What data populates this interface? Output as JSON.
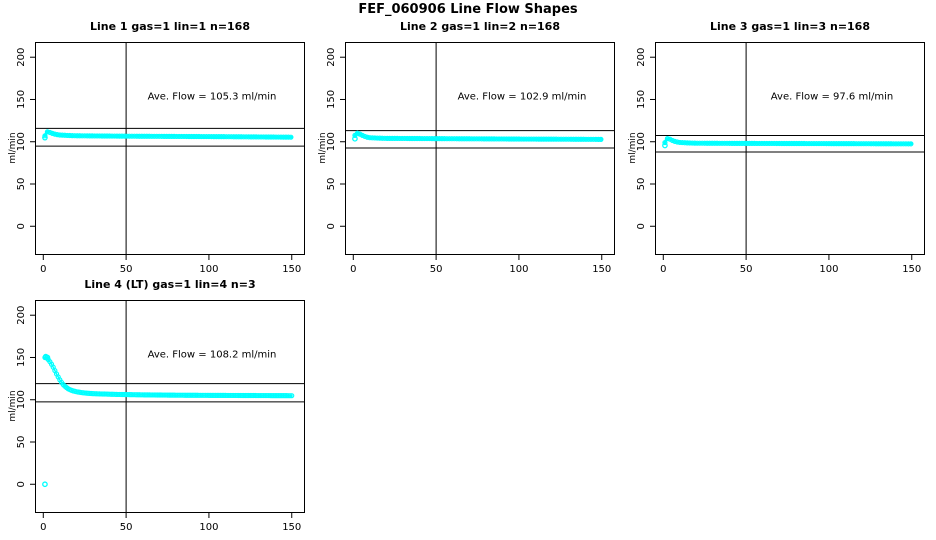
{
  "figure": {
    "title": "FEF_060906  Line Flow Shapes",
    "y_axis_label": "ml/min",
    "background": "#ffffff",
    "point_color": "#00ffff",
    "axis_color": "#000000"
  },
  "axes": {
    "x_ticks": [
      0,
      50,
      100,
      150
    ],
    "y_ticks": [
      0,
      50,
      100,
      150,
      200
    ],
    "x_range": [
      -5,
      158
    ],
    "y_range": [
      -34,
      218
    ],
    "grid": false
  },
  "chart_data": [
    {
      "type": "scatter",
      "title": "Line 1 gas=1 lin=1 n=168",
      "annotation": "Ave. Flow =  105.3  ml/min",
      "ave_flow_ml_min": 105.3,
      "gas": 1,
      "lin": 1,
      "n": 168,
      "ref_vertical_x": 50,
      "ref_upper_y": 115.8,
      "ref_lower_y": 94.8,
      "band_halfwidth": 1.6,
      "profile_points": [
        [
          1,
          107
        ],
        [
          2,
          111.5
        ],
        [
          3,
          112
        ],
        [
          4,
          111
        ],
        [
          6,
          109.5
        ],
        [
          8,
          108.5
        ],
        [
          10,
          108
        ],
        [
          15,
          107.4
        ],
        [
          20,
          107.1
        ],
        [
          30,
          106.9
        ],
        [
          50,
          106.6
        ],
        [
          80,
          106.3
        ],
        [
          110,
          106
        ],
        [
          130,
          105.7
        ],
        [
          150,
          105.4
        ]
      ],
      "extra_points": [
        [
          1,
          104.8
        ]
      ]
    },
    {
      "type": "scatter",
      "title": "Line 2 gas=1 lin=2 n=168",
      "annotation": "Ave. Flow =  102.9  ml/min",
      "ave_flow_ml_min": 102.9,
      "gas": 1,
      "lin": 2,
      "n": 168,
      "ref_vertical_x": 50,
      "ref_upper_y": 113.2,
      "ref_lower_y": 92.6,
      "band_halfwidth": 1.6,
      "profile_points": [
        [
          1,
          107.5
        ],
        [
          2,
          110
        ],
        [
          3,
          110
        ],
        [
          4,
          109
        ],
        [
          6,
          107
        ],
        [
          8,
          105.5
        ],
        [
          10,
          104.8
        ],
        [
          15,
          104.3
        ],
        [
          20,
          104
        ],
        [
          40,
          103.8
        ],
        [
          70,
          103.5
        ],
        [
          100,
          103.2
        ],
        [
          130,
          103
        ],
        [
          150,
          102.8
        ]
      ],
      "extra_points": [
        [
          1,
          103.5
        ]
      ]
    },
    {
      "type": "scatter",
      "title": "Line 3 gas=1 lin=3 n=168",
      "annotation": "Ave. Flow =  97.6  ml/min",
      "ave_flow_ml_min": 97.6,
      "gas": 1,
      "lin": 3,
      "n": 168,
      "ref_vertical_x": 50,
      "ref_upper_y": 107.4,
      "ref_lower_y": 87.8,
      "band_halfwidth": 1.6,
      "profile_points": [
        [
          1,
          99
        ],
        [
          2,
          103.5
        ],
        [
          3,
          104
        ],
        [
          4,
          103
        ],
        [
          6,
          101
        ],
        [
          8,
          99.8
        ],
        [
          10,
          99.2
        ],
        [
          15,
          98.6
        ],
        [
          20,
          98.3
        ],
        [
          40,
          98.1
        ],
        [
          80,
          97.9
        ],
        [
          120,
          97.7
        ],
        [
          150,
          97.5
        ]
      ],
      "extra_points": [
        [
          1,
          95.5
        ]
      ]
    },
    {
      "type": "scatter",
      "title": "Line 4 (LT) gas=1 lin=4 n=3",
      "annotation": "Ave. Flow =  108.2  ml/min",
      "ave_flow_ml_min": 108.2,
      "gas": 1,
      "lin": 4,
      "n": 3,
      "ref_vertical_x": 50,
      "ref_upper_y": 119.0,
      "ref_lower_y": 97.4,
      "band_halfwidth": 0.9,
      "profile_points": [
        [
          1,
          150
        ],
        [
          2,
          149.5
        ],
        [
          3,
          147.5
        ],
        [
          4,
          145
        ],
        [
          5,
          142
        ],
        [
          6,
          138.5
        ],
        [
          7,
          134.5
        ],
        [
          8,
          130.5
        ],
        [
          9,
          127
        ],
        [
          10,
          123.5
        ],
        [
          11,
          120.5
        ],
        [
          12,
          118
        ],
        [
          13,
          116
        ],
        [
          14,
          114.5
        ],
        [
          15,
          113
        ],
        [
          16,
          112
        ],
        [
          18,
          110.5
        ],
        [
          20,
          109.5
        ],
        [
          23,
          108.5
        ],
        [
          26,
          107.8
        ],
        [
          30,
          107.2
        ],
        [
          36,
          106.8
        ],
        [
          45,
          106.3
        ],
        [
          60,
          105.8
        ],
        [
          80,
          105.4
        ],
        [
          100,
          105.2
        ],
        [
          125,
          105
        ],
        [
          150,
          104.8
        ]
      ],
      "extra_points": [
        [
          1,
          0
        ],
        [
          1.5,
          151
        ],
        [
          2.5,
          150
        ]
      ]
    }
  ]
}
